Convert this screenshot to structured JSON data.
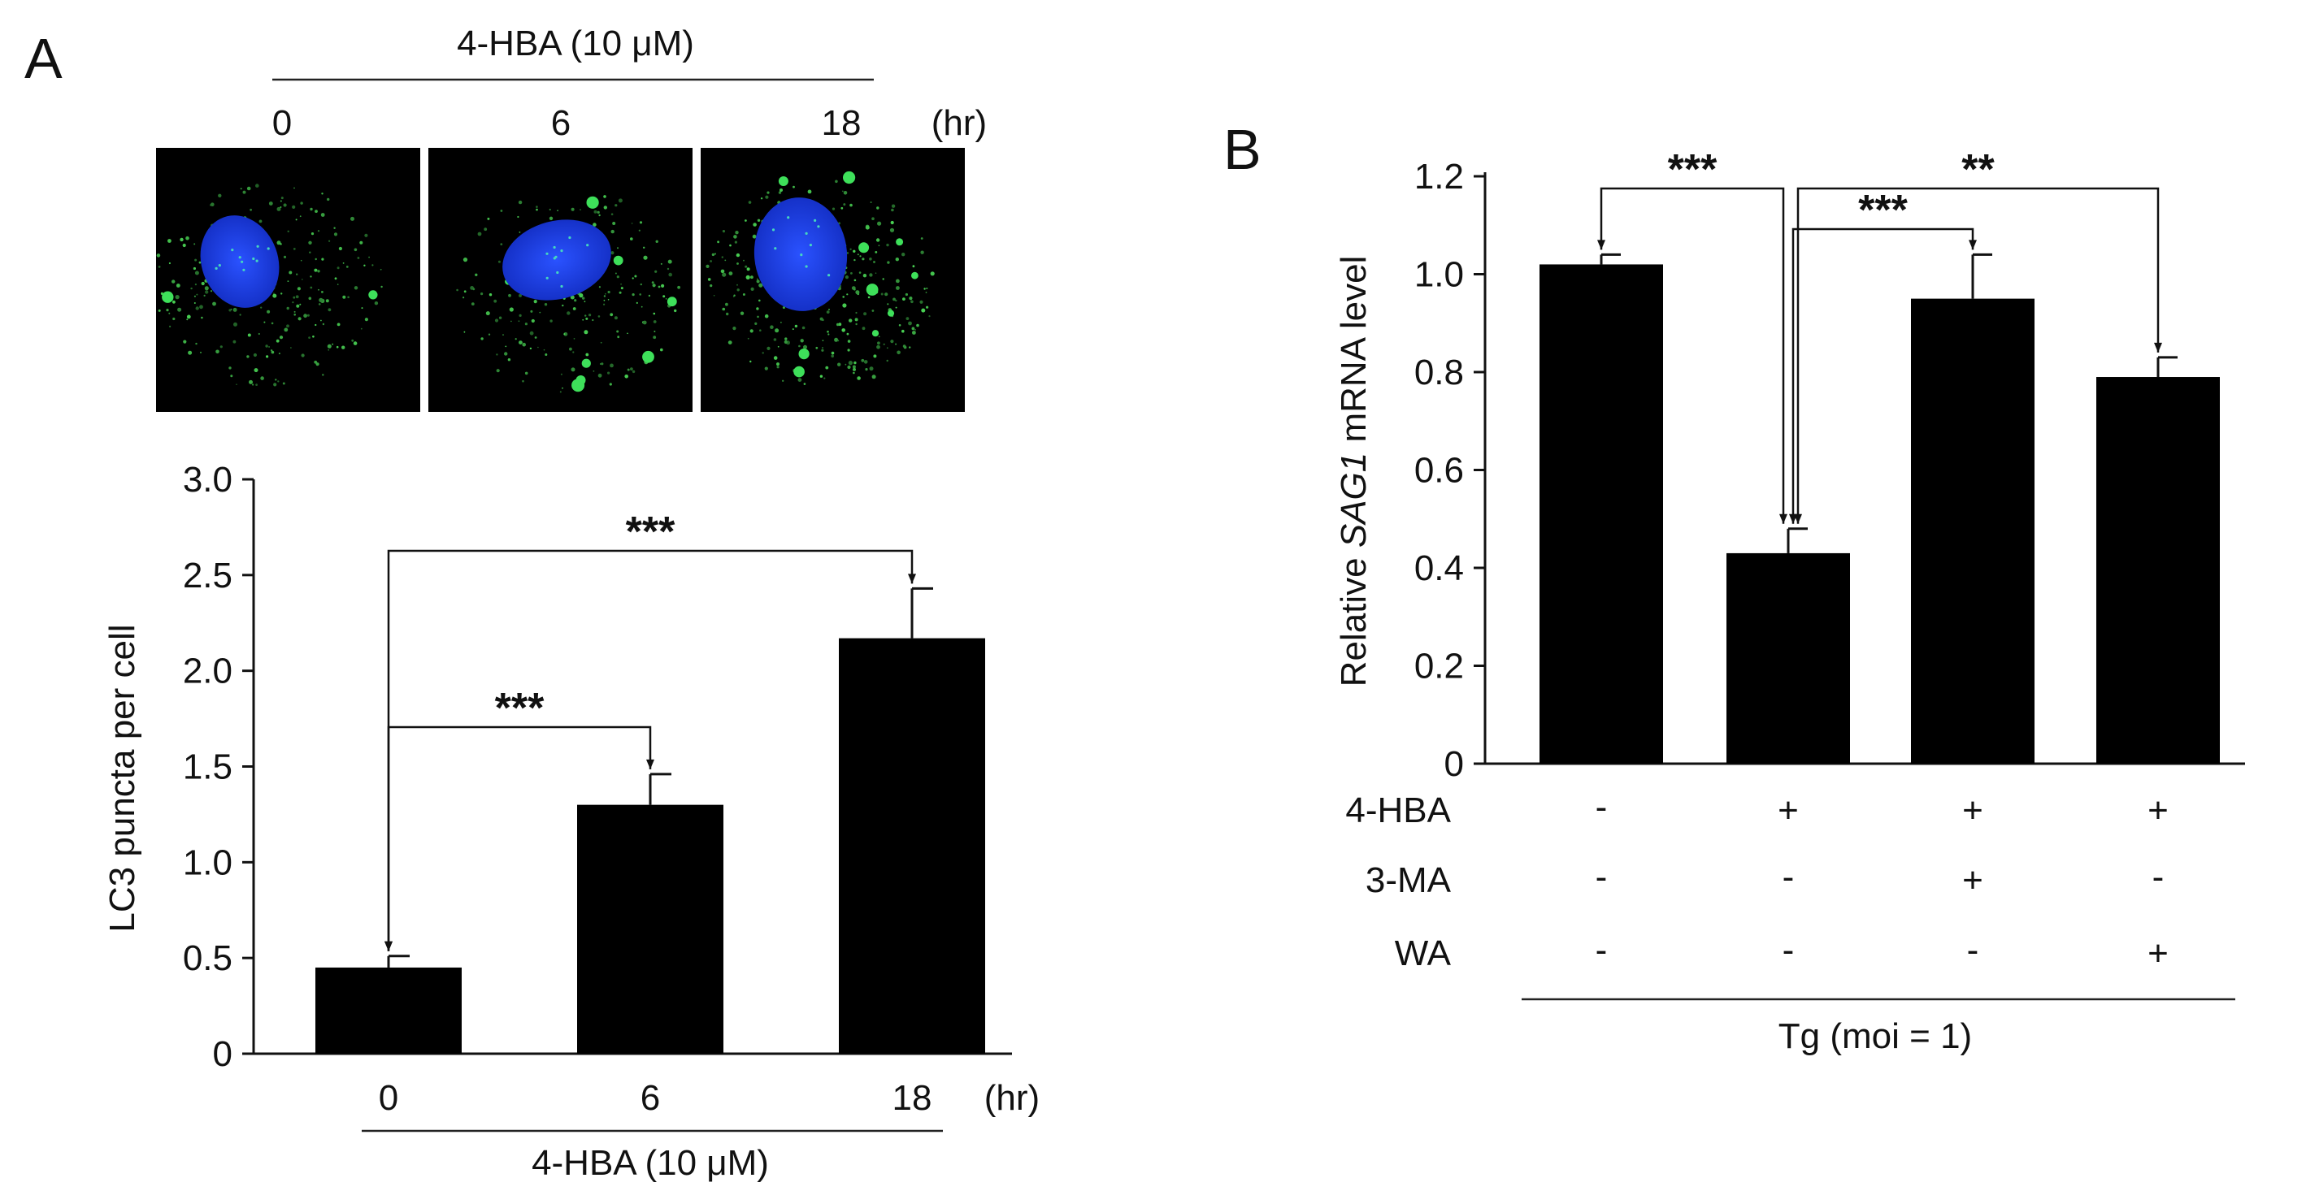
{
  "panelA": {
    "letter": "A",
    "images": {
      "header": "4-HBA (10 μM)",
      "time_labels": [
        "0",
        "6",
        "18"
      ],
      "unit": "(hr)"
    }
  },
  "panelB": {
    "letter": "B",
    "condition_rows": [
      {
        "label": "4-HBA",
        "values": [
          "-",
          "+",
          "+",
          "+"
        ]
      },
      {
        "label": "3-MA",
        "values": [
          "-",
          "-",
          "+",
          "-"
        ]
      },
      {
        "label": "WA",
        "values": [
          "-",
          "-",
          "-",
          "+"
        ]
      }
    ],
    "footer": "Tg (moi = 1)"
  },
  "chart_data": [
    {
      "type": "bar",
      "panel": "A",
      "ylabel": "LC3 puncta per cell",
      "ylim": [
        0,
        3.0
      ],
      "yticks": [
        "0",
        "0.5",
        "1.0",
        "1.5",
        "2.0",
        "2.5",
        "3.0"
      ],
      "categories": [
        "0",
        "6",
        "18"
      ],
      "x_unit": "(hr)",
      "x_group_label": "4-HBA (10 μM)",
      "values": [
        0.45,
        1.3,
        2.17
      ],
      "errors": [
        0.06,
        0.16,
        0.26
      ],
      "bar_color": "#000000",
      "significance": [
        {
          "from": 0,
          "to": 1,
          "label": "***"
        },
        {
          "from": 0,
          "to": 2,
          "label": "***"
        }
      ]
    },
    {
      "type": "bar",
      "panel": "B",
      "ylabel_prefix": "Relative ",
      "ylabel_gene": "SAG1",
      "ylabel_suffix": " mRNA level",
      "ylim": [
        0,
        1.2
      ],
      "yticks": [
        "0",
        "0.2",
        "0.4",
        "0.6",
        "0.8",
        "1.0",
        "1.2"
      ],
      "values": [
        1.02,
        0.43,
        0.95,
        0.79
      ],
      "errors": [
        0.02,
        0.05,
        0.09,
        0.04
      ],
      "bar_color": "#000000",
      "significance": [
        {
          "from": 0,
          "to": 1,
          "label": "***"
        },
        {
          "from": 1,
          "to": 2,
          "label": "***"
        },
        {
          "from": 1,
          "to": 3,
          "label": "**"
        }
      ]
    }
  ]
}
